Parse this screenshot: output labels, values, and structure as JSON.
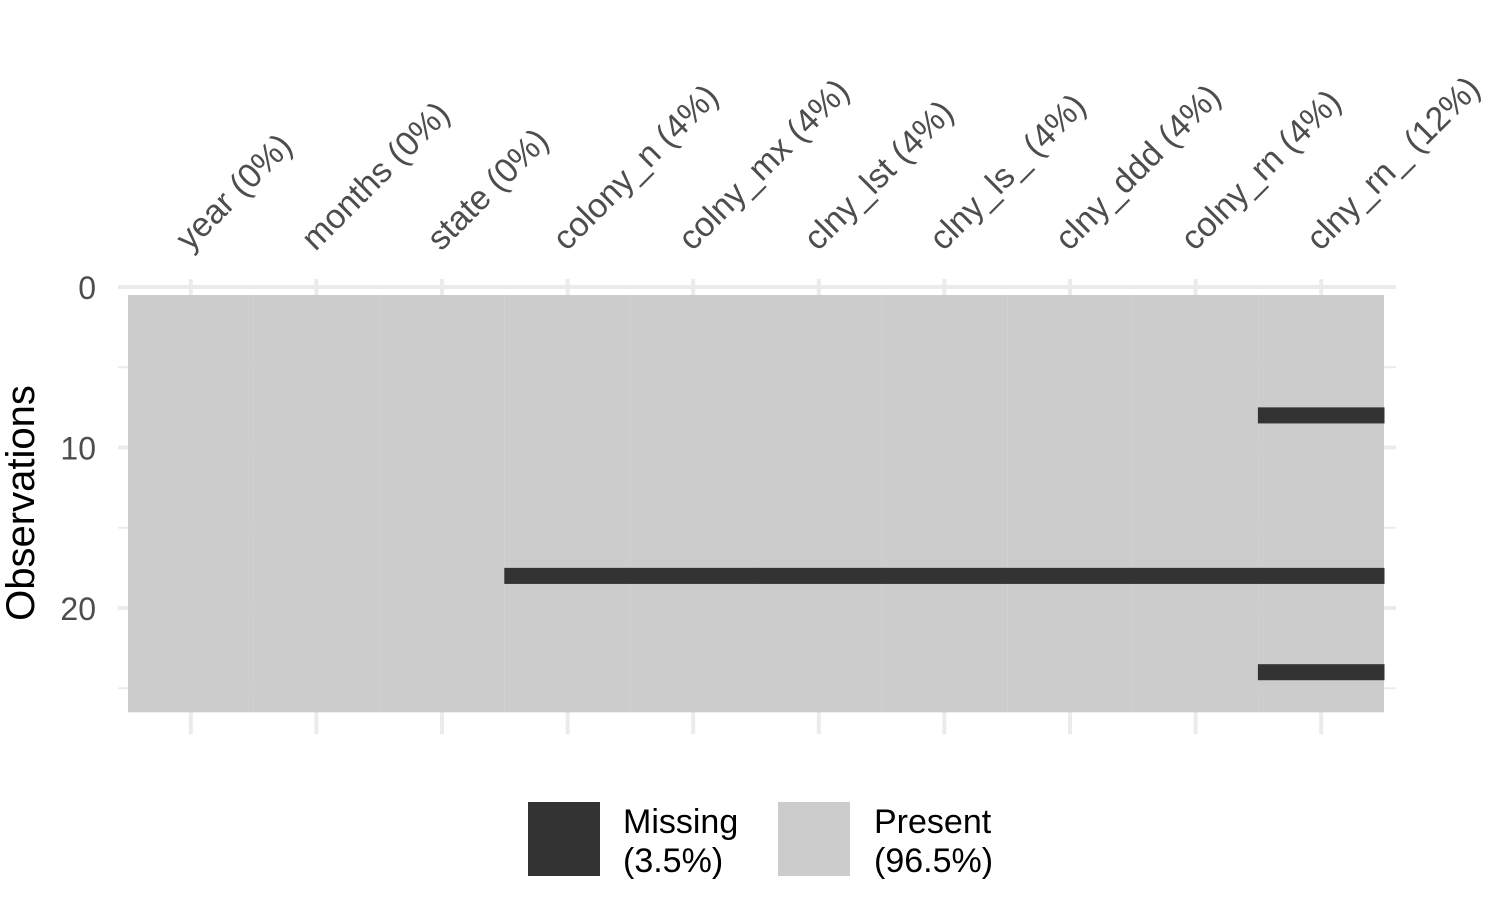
{
  "chart_data": {
    "type": "heatmap",
    "title": "",
    "xlabel": "",
    "ylabel": "Observations",
    "ylim": [
      0,
      26
    ],
    "y_ticks": [
      0,
      10,
      20
    ],
    "y_tick_labels": [
      "0",
      "10",
      "20"
    ],
    "y_minor_ticks": [
      5,
      15,
      25
    ],
    "n_observations": 26,
    "columns": [
      {
        "label": "year (0%)",
        "missing_rows": []
      },
      {
        "label": "months (0%)",
        "missing_rows": []
      },
      {
        "label": "state (0%)",
        "missing_rows": []
      },
      {
        "label": "colony_n (4%)",
        "missing_rows": [
          18
        ]
      },
      {
        "label": "colny_mx (4%)",
        "missing_rows": [
          18
        ]
      },
      {
        "label": "clny_lst (4%)",
        "missing_rows": [
          18
        ]
      },
      {
        "label": "clny_ls_ (4%)",
        "missing_rows": [
          18
        ]
      },
      {
        "label": "clny_ddd (4%)",
        "missing_rows": [
          18
        ]
      },
      {
        "label": "colny_rn (4%)",
        "missing_rows": [
          18
        ]
      },
      {
        "label": "clny_rn_ (12%)",
        "missing_rows": [
          8,
          18,
          24
        ]
      }
    ],
    "legend": {
      "position": "bottom",
      "items": [
        {
          "line1": "Missing",
          "line2": "(3.5%)",
          "color": "#333333"
        },
        {
          "line1": "Present",
          "line2": "(96.5%)",
          "color": "#cccccc"
        }
      ]
    },
    "colors": {
      "missing": "#333333",
      "present": "#cccccc",
      "grid": "#ebebeb",
      "text": "#4d4d4d",
      "axis_title": "#000000"
    }
  }
}
